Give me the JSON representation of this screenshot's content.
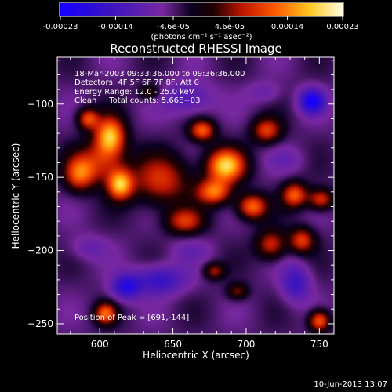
{
  "chart_data": {
    "type": "heatmap",
    "title": "Reconstructed RHESSI Image",
    "xlabel": "Heliocentric X (arcsec)",
    "ylabel": "Heliocentric Y (arcsec)",
    "xlim": [
      571,
      760
    ],
    "ylim": [
      -257,
      -68
    ],
    "x_ticks": [
      600,
      650,
      700,
      750
    ],
    "y_ticks": [
      -100,
      -150,
      -200,
      -250
    ],
    "colorbar": {
      "range": [
        -0.00023,
        0.00023
      ],
      "tick_values": [
        -0.00023,
        -0.00014,
        -4.6e-05,
        4.6e-05,
        0.00014,
        0.00023
      ],
      "tick_labels": [
        "-0.00023",
        "-0.00014",
        "-4.6e-05",
        "4.6e-05",
        "0.00014",
        "0.00023"
      ],
      "units": "(photons cm⁻² s⁻¹ asec⁻²)"
    },
    "annotations": [
      "18-Mar-2003 09:33:36.000 to 09:36:36.000",
      "Detectors: 4F 5F 6F 7F 8F, Att 0",
      "Energy Range: 12.0 - 25.0 keV",
      "Clean     Total counts: 5.66E+03"
    ],
    "peak_label": "Position of Peak = [691,-144]",
    "peak": {
      "x": 691,
      "y": -144
    },
    "blobs": [
      {
        "x": 607,
        "y": -122,
        "sx": 7,
        "sy": 9,
        "a": 0.95
      },
      {
        "x": 592,
        "y": -110,
        "sx": 5,
        "sy": 5,
        "a": 0.65
      },
      {
        "x": 614,
        "y": -155,
        "sx": 6,
        "sy": 7,
        "a": 0.9
      },
      {
        "x": 586,
        "y": -148,
        "sx": 7,
        "sy": 8,
        "a": 0.6
      },
      {
        "x": 600,
        "y": -140,
        "sx": 12,
        "sy": 10,
        "a": 0.5
      },
      {
        "x": 642,
        "y": -152,
        "sx": 14,
        "sy": 12,
        "a": 0.55
      },
      {
        "x": 670,
        "y": -118,
        "sx": 6,
        "sy": 5,
        "a": 0.7
      },
      {
        "x": 686,
        "y": -142,
        "sx": 9,
        "sy": 8,
        "a": 1.0
      },
      {
        "x": 678,
        "y": -160,
        "sx": 8,
        "sy": 6,
        "a": 0.75
      },
      {
        "x": 714,
        "y": -118,
        "sx": 7,
        "sy": 6,
        "a": 0.6
      },
      {
        "x": 704,
        "y": -170,
        "sx": 7,
        "sy": 6,
        "a": 0.75
      },
      {
        "x": 733,
        "y": -162,
        "sx": 6,
        "sy": 6,
        "a": 0.7
      },
      {
        "x": 751,
        "y": -165,
        "sx": 6,
        "sy": 5,
        "a": 0.6
      },
      {
        "x": 658,
        "y": -180,
        "sx": 9,
        "sy": 6,
        "a": 0.55
      },
      {
        "x": 717,
        "y": -196,
        "sx": 7,
        "sy": 7,
        "a": 0.55
      },
      {
        "x": 738,
        "y": -193,
        "sx": 6,
        "sy": 6,
        "a": 0.6
      },
      {
        "x": 678,
        "y": -214,
        "sx": 5,
        "sy": 4,
        "a": 0.45
      },
      {
        "x": 694,
        "y": -228,
        "sx": 5,
        "sy": 4,
        "a": 0.4
      },
      {
        "x": 604,
        "y": -243,
        "sx": 5,
        "sy": 5,
        "a": 0.7
      },
      {
        "x": 750,
        "y": -248,
        "sx": 5,
        "sy": 5,
        "a": 0.75
      },
      {
        "x": 634,
        "y": -92,
        "sx": 5,
        "sy": 4,
        "a": 0.35
      },
      {
        "x": 592,
        "y": -198,
        "sx": 9,
        "sy": 6,
        "a": -0.2
      },
      {
        "x": 641,
        "y": -220,
        "sx": 12,
        "sy": 7,
        "a": -0.5
      },
      {
        "x": 618,
        "y": -225,
        "sx": 7,
        "sy": 6,
        "a": -0.6
      },
      {
        "x": 734,
        "y": -222,
        "sx": 7,
        "sy": 9,
        "a": -0.45
      },
      {
        "x": 745,
        "y": -98,
        "sx": 6,
        "sy": 6,
        "a": -0.75
      },
      {
        "x": 660,
        "y": -96,
        "sx": 12,
        "sy": 8,
        "a": -0.35
      },
      {
        "x": 712,
        "y": -92,
        "sx": 8,
        "sy": 5,
        "a": -0.2
      },
      {
        "x": 728,
        "y": -138,
        "sx": 9,
        "sy": 6,
        "a": -0.15
      },
      {
        "x": 662,
        "y": -200,
        "sx": 10,
        "sy": 6,
        "a": -0.15
      }
    ],
    "background_level": -0.2,
    "grid": false
  },
  "footer": {
    "timestamp": "10-Jun-2013 13:07"
  }
}
